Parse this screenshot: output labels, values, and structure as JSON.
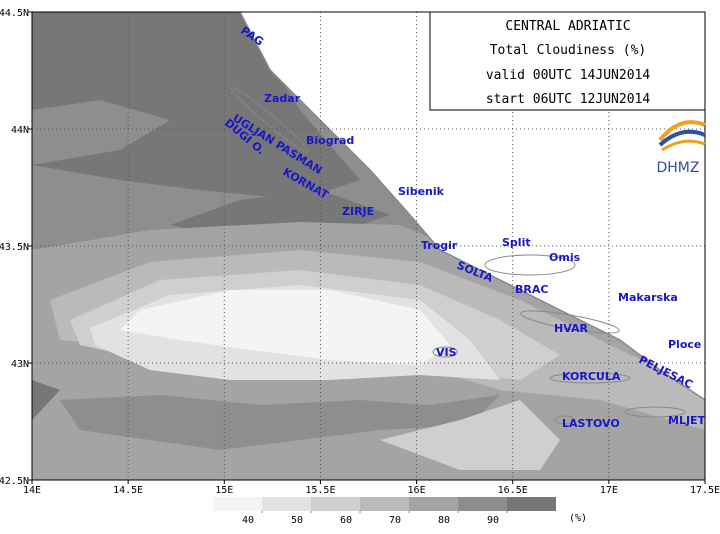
{
  "map": {
    "title_box": [
      "CENTRAL ADRIATIC",
      "Total Cloudiness (%)",
      "valid 00UTC 14JUN2014",
      "start 06UTC 12JUN2014"
    ],
    "logo": "DHMZ",
    "lon_ticks": [
      {
        "value": 14,
        "label": "14E"
      },
      {
        "value": 14.5,
        "label": "14.5E"
      },
      {
        "value": 15,
        "label": "15E"
      },
      {
        "value": 15.5,
        "label": "15.5E"
      },
      {
        "value": 16,
        "label": "16E"
      },
      {
        "value": 16.5,
        "label": "16.5E"
      },
      {
        "value": 17,
        "label": "17E"
      },
      {
        "value": 17.5,
        "label": "17.5E"
      }
    ],
    "lat_ticks": [
      {
        "value": 42.5,
        "label": "42.5N"
      },
      {
        "value": 43,
        "label": "43N"
      },
      {
        "value": 43.5,
        "label": "43.5N"
      },
      {
        "value": 44,
        "label": "44N"
      },
      {
        "value": 44.5,
        "label": "44.5N"
      }
    ],
    "lon_range": [
      14,
      17.5
    ],
    "lat_range": [
      42.5,
      44.5
    ],
    "places": [
      "PAG",
      "Zadar",
      "UGLJAN PASMAN",
      "Biograd",
      "DUGI O.",
      "KORNAT",
      "ZIRJE",
      "Sibenik",
      "Trogir",
      "Split",
      "Omis",
      "SOLTA",
      "BRAC",
      "Makarska",
      "HVAR",
      "Ploce",
      "VIS",
      "PELJESAC",
      "KORCULA",
      "MLJET",
      "LASTOVO"
    ],
    "colorbar": {
      "levels": [
        40,
        50,
        60,
        70,
        80,
        90
      ],
      "unit": "(%)",
      "colors": [
        "#f4f4f4",
        "#e2e2e2",
        "#cfcfcf",
        "#bababa",
        "#a4a4a4",
        "#8e8e8e",
        "#777777"
      ]
    }
  }
}
